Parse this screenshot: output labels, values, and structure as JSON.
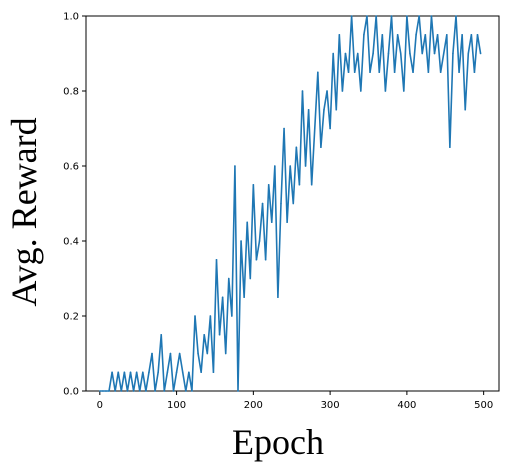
{
  "chart_data": {
    "type": "line",
    "xlabel": "Epoch",
    "ylabel": "Avg. Reward",
    "xlim": [
      -18,
      520
    ],
    "ylim": [
      0.0,
      1.0
    ],
    "xticks": [
      0,
      100,
      200,
      300,
      400,
      500
    ],
    "yticks": [
      0.0,
      0.2,
      0.4,
      0.6,
      0.8,
      1.0
    ],
    "xtick_labels": [
      "0",
      "100",
      "200",
      "300",
      "400",
      "500"
    ],
    "ytick_labels": [
      "0.0",
      "0.2",
      "0.4",
      "0.6",
      "0.8",
      "1.0"
    ],
    "grid": false,
    "line_color": "#1f77b4",
    "series": [
      {
        "x": [
          0,
          4,
          8,
          12,
          16,
          20,
          24,
          28,
          32,
          36,
          40,
          44,
          48,
          52,
          56,
          60,
          64,
          68,
          72,
          76,
          80,
          84,
          88,
          92,
          96,
          100,
          104,
          108,
          112,
          116,
          120,
          124,
          128,
          132,
          136,
          140,
          144,
          148,
          152,
          156,
          160,
          164,
          168,
          172,
          176,
          180,
          184,
          188,
          192,
          196,
          200,
          204,
          208,
          212,
          216,
          220,
          224,
          228,
          232,
          236,
          240,
          244,
          248,
          252,
          256,
          260,
          264,
          268,
          272,
          276,
          280,
          284,
          288,
          292,
          296,
          300,
          304,
          308,
          312,
          316,
          320,
          324,
          328,
          332,
          336,
          340,
          344,
          348,
          352,
          356,
          360,
          364,
          368,
          372,
          376,
          380,
          384,
          388,
          392,
          396,
          400,
          404,
          408,
          412,
          416,
          420,
          424,
          428,
          432,
          436,
          440,
          444,
          448,
          452,
          456,
          460,
          464,
          468,
          472,
          476,
          480,
          484,
          488,
          492,
          496
        ],
        "y": [
          0.0,
          0.0,
          0.0,
          0.0,
          0.05,
          0.0,
          0.05,
          0.0,
          0.05,
          0.0,
          0.05,
          0.0,
          0.05,
          0.0,
          0.05,
          0.0,
          0.05,
          0.1,
          0.0,
          0.05,
          0.15,
          0.0,
          0.05,
          0.1,
          0.0,
          0.05,
          0.1,
          0.05,
          0.0,
          0.05,
          0.0,
          0.2,
          0.1,
          0.05,
          0.15,
          0.1,
          0.2,
          0.05,
          0.35,
          0.15,
          0.25,
          0.1,
          0.3,
          0.2,
          0.6,
          0.0,
          0.4,
          0.25,
          0.45,
          0.3,
          0.55,
          0.35,
          0.4,
          0.5,
          0.35,
          0.55,
          0.45,
          0.6,
          0.25,
          0.5,
          0.7,
          0.45,
          0.6,
          0.5,
          0.65,
          0.55,
          0.8,
          0.6,
          0.75,
          0.55,
          0.7,
          0.85,
          0.65,
          0.75,
          0.8,
          0.7,
          0.9,
          0.75,
          0.95,
          0.8,
          0.9,
          0.85,
          1.0,
          0.85,
          0.9,
          0.8,
          0.95,
          1.0,
          0.85,
          0.9,
          1.0,
          0.85,
          0.95,
          0.8,
          0.9,
          1.0,
          0.85,
          0.95,
          0.9,
          0.8,
          1.0,
          0.9,
          0.85,
          0.95,
          1.0,
          0.9,
          0.95,
          0.85,
          1.0,
          0.9,
          0.95,
          0.85,
          0.9,
          0.95,
          0.65,
          0.9,
          1.0,
          0.85,
          0.95,
          0.75,
          0.9,
          0.95,
          0.85,
          0.95,
          0.9
        ]
      }
    ]
  }
}
